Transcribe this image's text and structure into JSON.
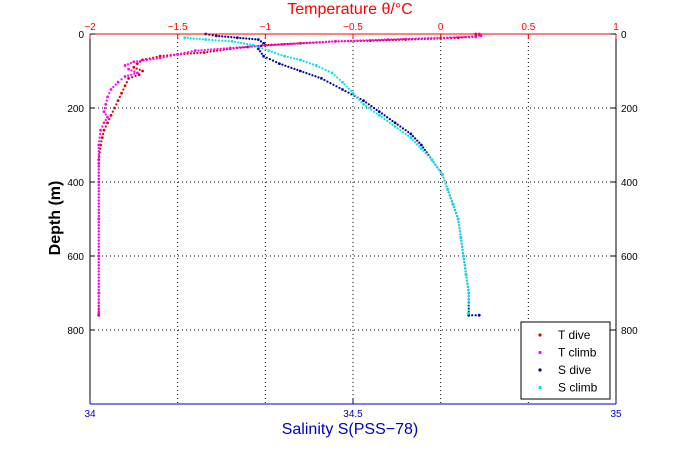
{
  "chart_data": {
    "type": "scatter",
    "xlabel_bottom": "Salinity S(PSS−78)",
    "xlabel_top": "Temperature θ/°C",
    "ylabel": "Depth (m)",
    "xlim_bottom": [
      34,
      35
    ],
    "xlim_top": [
      -2,
      1
    ],
    "ylim": [
      0,
      1000
    ],
    "y_reversed": true,
    "grid": true,
    "grid_style": "dotted",
    "legend_position": "bottom-right",
    "colors": {
      "temperature_axis": "#ff0000",
      "salinity_axis": "#0000c0",
      "t_dive": "#e00000",
      "t_climb": "#ff00ff",
      "s_dive": "#0000a0",
      "s_climb": "#00e6e6"
    },
    "ticks_bottom": [
      "34",
      "34.5",
      "35"
    ],
    "ticks_bottom_values": [
      34,
      34.5,
      35
    ],
    "ticks_top": [
      "−2",
      "−1.5",
      "−1",
      "−0.5",
      "0",
      "0.5",
      "1"
    ],
    "ticks_top_values": [
      -2,
      -1.5,
      -1,
      -0.5,
      0,
      0.5,
      1
    ],
    "ticks_y": [
      "0",
      "200",
      "400",
      "600",
      "800"
    ],
    "ticks_y_values": [
      0,
      200,
      400,
      600,
      800
    ],
    "series": [
      {
        "name": "T dive",
        "axis": "temperature",
        "points": [
          [
            0.2,
            0
          ],
          [
            0.22,
            3
          ],
          [
            0.2,
            6
          ],
          [
            0.1,
            10
          ],
          [
            0,
            12
          ],
          [
            -0.2,
            15
          ],
          [
            -0.4,
            18
          ],
          [
            -0.6,
            20
          ],
          [
            -0.8,
            25
          ],
          [
            -1.0,
            30
          ],
          [
            -1.1,
            35
          ],
          [
            -1.2,
            40
          ],
          [
            -1.35,
            50
          ],
          [
            -1.5,
            55
          ],
          [
            -1.6,
            60
          ],
          [
            -1.7,
            70
          ],
          [
            -1.73,
            80
          ],
          [
            -1.75,
            90
          ],
          [
            -1.7,
            100
          ],
          [
            -1.72,
            110
          ],
          [
            -1.78,
            120
          ],
          [
            -1.8,
            140
          ],
          [
            -1.82,
            160
          ],
          [
            -1.84,
            180
          ],
          [
            -1.86,
            200
          ],
          [
            -1.88,
            220
          ],
          [
            -1.9,
            240
          ],
          [
            -1.92,
            260
          ],
          [
            -1.93,
            280
          ],
          [
            -1.94,
            300
          ],
          [
            -1.95,
            340
          ],
          [
            -1.95,
            400
          ],
          [
            -1.95,
            500
          ],
          [
            -1.95,
            600
          ],
          [
            -1.95,
            700
          ],
          [
            -1.95,
            760
          ]
        ]
      },
      {
        "name": "T climb",
        "axis": "temperature",
        "points": [
          [
            0.22,
            0
          ],
          [
            0.23,
            5
          ],
          [
            0.2,
            8
          ],
          [
            0,
            10
          ],
          [
            -0.3,
            15
          ],
          [
            -0.6,
            20
          ],
          [
            -0.9,
            28
          ],
          [
            -1.2,
            38
          ],
          [
            -1.4,
            45
          ],
          [
            -1.5,
            55
          ],
          [
            -1.6,
            65
          ],
          [
            -1.75,
            75
          ],
          [
            -1.8,
            85
          ],
          [
            -1.78,
            95
          ],
          [
            -1.73,
            105
          ],
          [
            -1.8,
            115
          ],
          [
            -1.84,
            130
          ],
          [
            -1.88,
            150
          ],
          [
            -1.9,
            170
          ],
          [
            -1.91,
            190
          ],
          [
            -1.92,
            210
          ],
          [
            -1.9,
            225
          ],
          [
            -1.92,
            240
          ],
          [
            -1.94,
            260
          ],
          [
            -1.95,
            300
          ],
          [
            -1.95,
            350
          ],
          [
            -1.95,
            400
          ],
          [
            -1.95,
            500
          ],
          [
            -1.95,
            600
          ],
          [
            -1.95,
            700
          ],
          [
            -1.95,
            755
          ]
        ]
      },
      {
        "name": "S dive",
        "axis": "salinity",
        "points": [
          [
            34.22,
            0
          ],
          [
            34.24,
            5
          ],
          [
            34.28,
            10
          ],
          [
            34.32,
            15
          ],
          [
            34.33,
            25
          ],
          [
            34.32,
            40
          ],
          [
            34.33,
            60
          ],
          [
            34.36,
            80
          ],
          [
            34.4,
            100
          ],
          [
            34.44,
            120
          ],
          [
            34.48,
            150
          ],
          [
            34.52,
            180
          ],
          [
            34.55,
            210
          ],
          [
            34.58,
            240
          ],
          [
            34.61,
            270
          ],
          [
            34.63,
            300
          ],
          [
            34.65,
            340
          ],
          [
            34.67,
            380
          ],
          [
            34.68,
            420
          ],
          [
            34.69,
            460
          ],
          [
            34.7,
            500
          ],
          [
            34.705,
            550
          ],
          [
            34.71,
            600
          ],
          [
            34.715,
            650
          ],
          [
            34.72,
            700
          ],
          [
            34.72,
            760
          ],
          [
            34.74,
            760
          ]
        ]
      },
      {
        "name": "S climb",
        "axis": "salinity",
        "points": [
          [
            34.18,
            10
          ],
          [
            34.22,
            15
          ],
          [
            34.27,
            20
          ],
          [
            34.31,
            30
          ],
          [
            34.34,
            45
          ],
          [
            34.37,
            60
          ],
          [
            34.4,
            70
          ],
          [
            34.43,
            85
          ],
          [
            34.46,
            105
          ],
          [
            34.48,
            130
          ],
          [
            34.5,
            160
          ],
          [
            34.52,
            190
          ],
          [
            34.55,
            220
          ],
          [
            34.58,
            250
          ],
          [
            34.61,
            280
          ],
          [
            34.63,
            310
          ],
          [
            34.65,
            340
          ],
          [
            34.67,
            380
          ],
          [
            34.68,
            420
          ],
          [
            34.69,
            460
          ],
          [
            34.7,
            500
          ],
          [
            34.705,
            550
          ],
          [
            34.71,
            600
          ],
          [
            34.715,
            650
          ],
          [
            34.72,
            700
          ],
          [
            34.72,
            755
          ]
        ]
      }
    ]
  }
}
